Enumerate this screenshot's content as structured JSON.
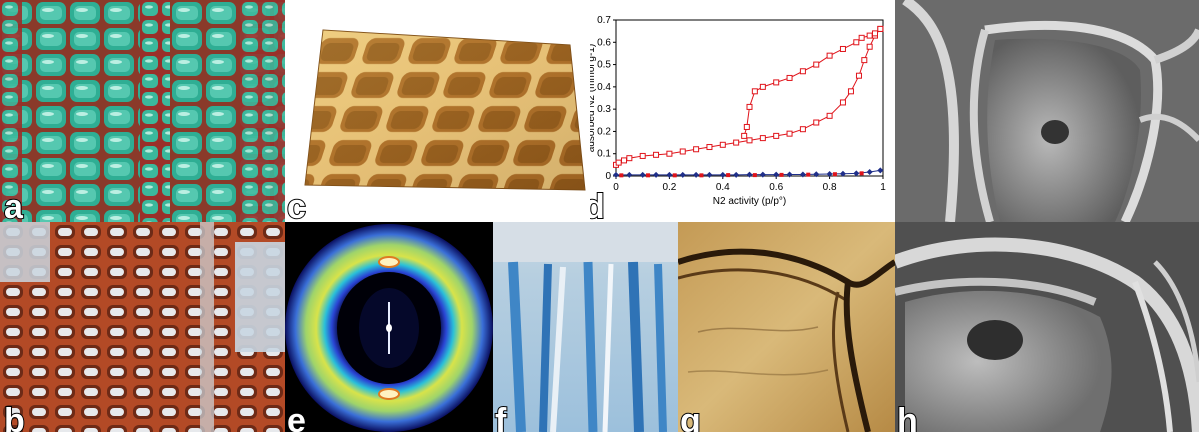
{
  "panels": {
    "a": {
      "label": "a"
    },
    "b": {
      "label": "b"
    },
    "c": {
      "label": "c"
    },
    "d": {
      "label": "d"
    },
    "e": {
      "label": "e"
    },
    "f": {
      "label": "f"
    },
    "g": {
      "label": "g"
    },
    "h": {
      "label": "h"
    }
  },
  "colors": {
    "micro_green": "#2fae94",
    "micro_red": "#b34a26",
    "afm_brown": "#c48a3a",
    "sem_gray": "#8a8a8a",
    "xray_yellow": "#d8e34a",
    "stain_blue": "#3f86c6",
    "iso_red": "#e0141b",
    "iso_blue": "#1f2f8a"
  },
  "chart_data": {
    "type": "line",
    "xlabel": "N2 activity (p/p°)",
    "ylabel": "adsorbed N2 (mmol g-1)",
    "xlim": [
      0,
      1
    ],
    "ylim": [
      0,
      0.7
    ],
    "xticks": [
      "0",
      "0.2",
      "0.4",
      "0.6",
      "0.8",
      "1"
    ],
    "yticks": [
      "0",
      "0.1",
      "0.2",
      "0.3",
      "0.4",
      "0.5",
      "0.6",
      "0.7"
    ],
    "series": [
      {
        "color": "#e0141b",
        "marker": "open-square",
        "adsorption": [
          [
            0.0,
            0.05
          ],
          [
            0.01,
            0.06
          ],
          [
            0.03,
            0.07
          ],
          [
            0.05,
            0.08
          ],
          [
            0.1,
            0.09
          ],
          [
            0.15,
            0.095
          ],
          [
            0.2,
            0.1
          ],
          [
            0.25,
            0.11
          ],
          [
            0.3,
            0.12
          ],
          [
            0.35,
            0.13
          ],
          [
            0.4,
            0.14
          ],
          [
            0.45,
            0.15
          ],
          [
            0.5,
            0.16
          ],
          [
            0.55,
            0.17
          ],
          [
            0.6,
            0.18
          ],
          [
            0.65,
            0.19
          ],
          [
            0.7,
            0.21
          ],
          [
            0.75,
            0.24
          ],
          [
            0.8,
            0.27
          ],
          [
            0.85,
            0.33
          ],
          [
            0.88,
            0.38
          ],
          [
            0.91,
            0.45
          ],
          [
            0.93,
            0.52
          ],
          [
            0.95,
            0.58
          ],
          [
            0.97,
            0.63
          ],
          [
            0.99,
            0.66
          ]
        ],
        "desorption": [
          [
            0.99,
            0.66
          ],
          [
            0.97,
            0.64
          ],
          [
            0.95,
            0.63
          ],
          [
            0.92,
            0.62
          ],
          [
            0.9,
            0.6
          ],
          [
            0.85,
            0.57
          ],
          [
            0.8,
            0.54
          ],
          [
            0.75,
            0.5
          ],
          [
            0.7,
            0.47
          ],
          [
            0.65,
            0.44
          ],
          [
            0.6,
            0.42
          ],
          [
            0.55,
            0.4
          ],
          [
            0.52,
            0.38
          ],
          [
            0.5,
            0.31
          ],
          [
            0.49,
            0.22
          ],
          [
            0.48,
            0.18
          ]
        ]
      },
      {
        "color": "#1f2f8a",
        "marker": "filled-diamond",
        "values": [
          [
            0.0,
            0.005
          ],
          [
            0.05,
            0.005
          ],
          [
            0.1,
            0.005
          ],
          [
            0.15,
            0.005
          ],
          [
            0.2,
            0.005
          ],
          [
            0.25,
            0.005
          ],
          [
            0.3,
            0.005
          ],
          [
            0.35,
            0.005
          ],
          [
            0.4,
            0.005
          ],
          [
            0.45,
            0.005
          ],
          [
            0.5,
            0.006
          ],
          [
            0.55,
            0.006
          ],
          [
            0.6,
            0.006
          ],
          [
            0.65,
            0.007
          ],
          [
            0.7,
            0.007
          ],
          [
            0.75,
            0.008
          ],
          [
            0.8,
            0.009
          ],
          [
            0.85,
            0.01
          ],
          [
            0.9,
            0.012
          ],
          [
            0.95,
            0.018
          ],
          [
            0.99,
            0.025
          ]
        ]
      },
      {
        "color": "#e0141b",
        "marker": "filled-square-small",
        "values": [
          [
            0.02,
            0.003
          ],
          [
            0.12,
            0.003
          ],
          [
            0.22,
            0.003
          ],
          [
            0.32,
            0.003
          ],
          [
            0.42,
            0.004
          ],
          [
            0.52,
            0.004
          ],
          [
            0.62,
            0.005
          ],
          [
            0.72,
            0.006
          ],
          [
            0.82,
            0.008
          ],
          [
            0.92,
            0.012
          ]
        ]
      }
    ]
  }
}
